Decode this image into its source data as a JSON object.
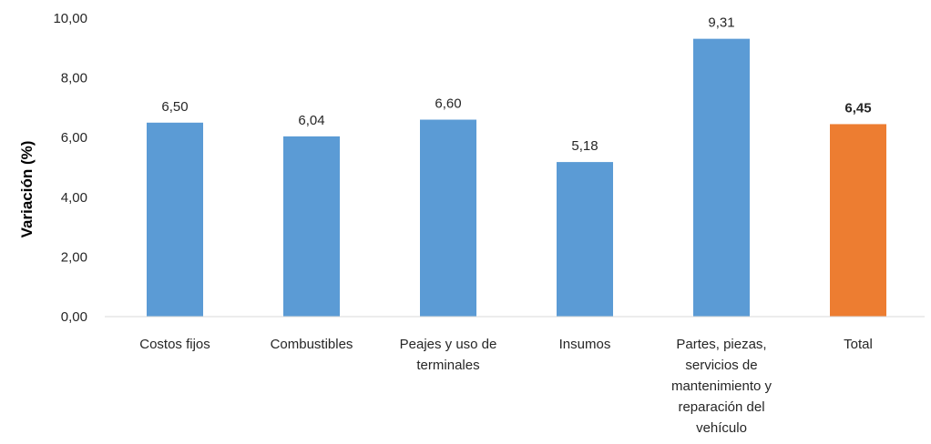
{
  "chart_data": {
    "type": "bar",
    "ylabel": "Variación (%)",
    "ylim": [
      0,
      10
    ],
    "yticks": [
      0,
      2,
      4,
      6,
      8,
      10
    ],
    "ytick_labels": [
      "0,00",
      "2,00",
      "4,00",
      "6,00",
      "8,00",
      "10,00"
    ],
    "grid": false,
    "legend": "none",
    "categories": [
      "Costos fijos",
      "Combustibles",
      "Peajes y uso de terminales",
      "Insumos",
      "Partes, piezas, servicios de mantenimiento y reparación del vehículo",
      "Total"
    ],
    "category_lines": [
      [
        "Costos fijos"
      ],
      [
        "Combustibles"
      ],
      [
        "Peajes y uso de",
        "terminales"
      ],
      [
        "Insumos"
      ],
      [
        "Partes, piezas,",
        "servicios de",
        "mantenimiento y",
        "reparación del",
        "vehículo"
      ],
      [
        "Total"
      ]
    ],
    "values": [
      6.5,
      6.04,
      6.6,
      5.18,
      9.31,
      6.45
    ],
    "value_labels": [
      "6,50",
      "6,04",
      "6,60",
      "5,18",
      "9,31",
      "6,45"
    ],
    "bold_labels": [
      false,
      false,
      false,
      false,
      false,
      true
    ],
    "colors": [
      "#5B9BD5",
      "#5B9BD5",
      "#5B9BD5",
      "#5B9BD5",
      "#5B9BD5",
      "#ED7D31"
    ]
  }
}
